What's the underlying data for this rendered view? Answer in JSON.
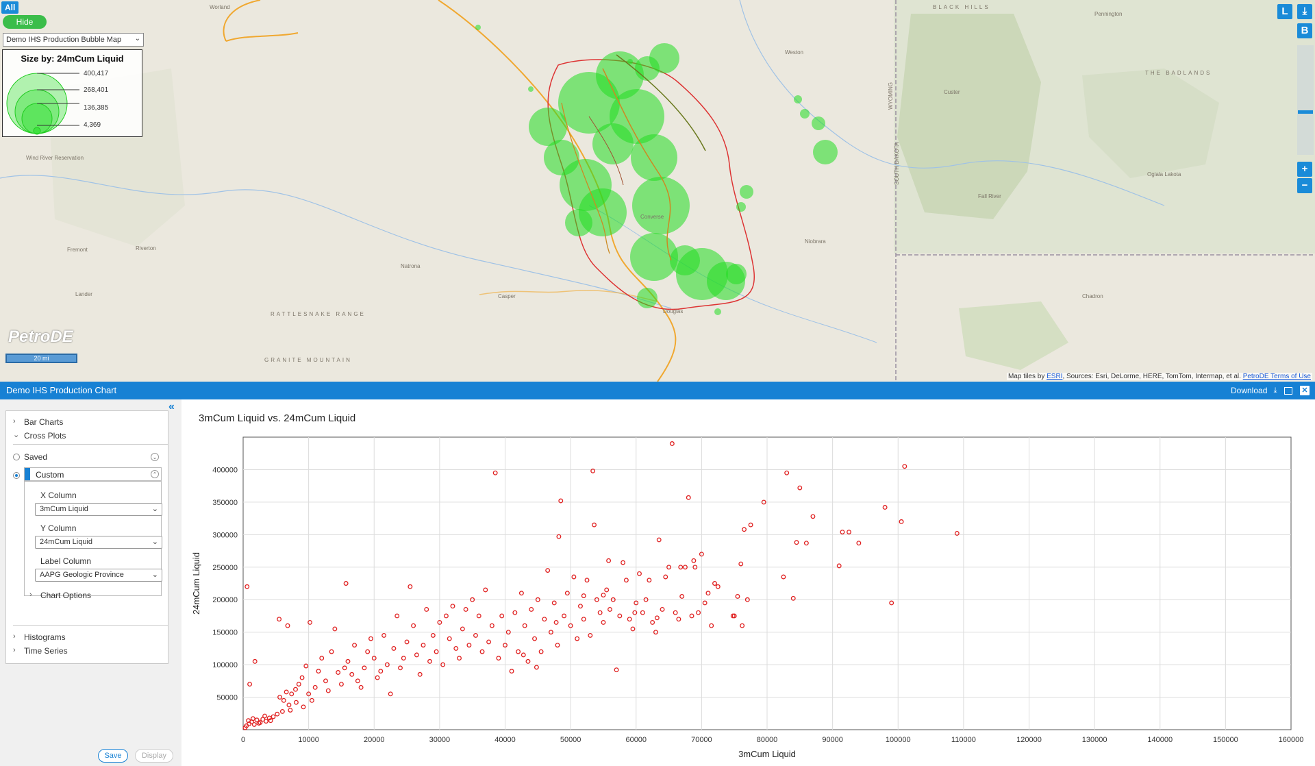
{
  "map": {
    "all_label": "All",
    "hide_label": "Hide",
    "layer_select": "Demo IHS Production Bubble Map",
    "legend": {
      "title": "Size by: 24mCum Liquid",
      "values": [
        "400,417",
        "268,401",
        "136,385",
        "4,369"
      ]
    },
    "logo": "PetroDE",
    "scale": "20 mi",
    "controls": {
      "l": "L",
      "b": "B",
      "zoom_in": "+",
      "zoom_out": "−"
    },
    "attribution_prefix": "Map tiles by",
    "attribution_esri": "ESRI",
    "attribution_rest": ", Sources: Esri, DeLorme, HERE, TomTom, Intermap, et al.",
    "attribution_terms": "PetroDE Terms of Use",
    "place_labels": [
      "Worland",
      "Wind River Reservation",
      "Riverton",
      "Lander",
      "Fremont",
      "Natrona",
      "Casper",
      "Douglas",
      "Weston",
      "Chadron",
      "Fall River",
      "Niobrara",
      "Custer",
      "Ogiala Lakota",
      "THE BADLANDS",
      "Pennington",
      "BLACK HILLS",
      "RATTLESNAKE RANGE",
      "GRANITE MOUNTAIN",
      "Converse",
      "SOUTH DAKOTA",
      "WYOMING"
    ],
    "bubble_color": "#22dd22",
    "play_boundary_color": "#dd3333"
  },
  "panel": {
    "title": "Demo IHS Production Chart",
    "download_label": "Download",
    "sidebar": {
      "bar_charts": "Bar Charts",
      "cross_plots": "Cross Plots",
      "saved": "Saved",
      "custom": "Custom",
      "x_column_label": "X Column",
      "x_column_value": "3mCum Liquid",
      "y_column_label": "Y Column",
      "y_column_value": "24mCum Liquid",
      "label_column_label": "Label Column",
      "label_column_value": "AAPG Geologic Province",
      "chart_options": "Chart Options",
      "histograms": "Histograms",
      "time_series": "Time Series"
    },
    "save_label": "Save",
    "display_label": "Display"
  },
  "chart_data": {
    "type": "scatter",
    "title": "3mCum Liquid vs. 24mCum Liquid",
    "xlabel": "3mCum Liquid",
    "ylabel": "24mCum Liquid",
    "xlim": [
      0,
      160000
    ],
    "ylim": [
      0,
      450000
    ],
    "x_ticks": [
      0,
      10000,
      20000,
      30000,
      40000,
      50000,
      60000,
      70000,
      80000,
      90000,
      100000,
      110000,
      120000,
      130000,
      140000,
      150000,
      160000
    ],
    "y_ticks": [
      50000,
      100000,
      150000,
      200000,
      250000,
      300000,
      350000,
      400000
    ],
    "grid": true,
    "marker_color": "#e02020",
    "points": [
      [
        600,
        220000
      ],
      [
        1000,
        70000
      ],
      [
        1800,
        105000
      ],
      [
        300,
        3000
      ],
      [
        500,
        6000
      ],
      [
        900,
        9000
      ],
      [
        1300,
        12000
      ],
      [
        1700,
        8000
      ],
      [
        2100,
        15000
      ],
      [
        2600,
        11000
      ],
      [
        3000,
        16000
      ],
      [
        3500,
        13000
      ],
      [
        4000,
        18000
      ],
      [
        4600,
        20000
      ],
      [
        5200,
        24000
      ],
      [
        800,
        14000
      ],
      [
        1500,
        17000
      ],
      [
        2400,
        10000
      ],
      [
        3300,
        21000
      ],
      [
        4200,
        14000
      ],
      [
        5500,
        170000
      ],
      [
        6800,
        160000
      ],
      [
        5600,
        50000
      ],
      [
        6200,
        45000
      ],
      [
        7000,
        38000
      ],
      [
        7400,
        55000
      ],
      [
        8000,
        62000
      ],
      [
        8500,
        70000
      ],
      [
        9000,
        80000
      ],
      [
        9600,
        98000
      ],
      [
        6000,
        28000
      ],
      [
        7200,
        30000
      ],
      [
        8100,
        42000
      ],
      [
        9200,
        35000
      ],
      [
        6600,
        58000
      ],
      [
        10000,
        55000
      ],
      [
        10500,
        45000
      ],
      [
        11000,
        65000
      ],
      [
        11500,
        90000
      ],
      [
        12000,
        110000
      ],
      [
        10200,
        165000
      ],
      [
        12600,
        75000
      ],
      [
        13000,
        60000
      ],
      [
        13500,
        120000
      ],
      [
        14000,
        155000
      ],
      [
        14500,
        88000
      ],
      [
        15000,
        70000
      ],
      [
        15500,
        95000
      ],
      [
        16000,
        105000
      ],
      [
        15700,
        225000
      ],
      [
        16600,
        85000
      ],
      [
        17000,
        130000
      ],
      [
        17500,
        75000
      ],
      [
        18000,
        65000
      ],
      [
        18500,
        95000
      ],
      [
        19000,
        120000
      ],
      [
        19500,
        140000
      ],
      [
        20000,
        110000
      ],
      [
        20500,
        80000
      ],
      [
        21000,
        90000
      ],
      [
        21500,
        145000
      ],
      [
        22000,
        100000
      ],
      [
        22500,
        55000
      ],
      [
        23000,
        125000
      ],
      [
        23500,
        175000
      ],
      [
        24000,
        95000
      ],
      [
        24500,
        110000
      ],
      [
        25000,
        135000
      ],
      [
        25500,
        220000
      ],
      [
        26000,
        160000
      ],
      [
        26500,
        115000
      ],
      [
        27000,
        85000
      ],
      [
        27500,
        130000
      ],
      [
        28000,
        185000
      ],
      [
        28500,
        105000
      ],
      [
        29000,
        145000
      ],
      [
        29500,
        120000
      ],
      [
        30000,
        165000
      ],
      [
        30500,
        100000
      ],
      [
        31000,
        175000
      ],
      [
        31500,
        140000
      ],
      [
        32000,
        190000
      ],
      [
        32500,
        125000
      ],
      [
        33000,
        110000
      ],
      [
        33500,
        155000
      ],
      [
        34000,
        185000
      ],
      [
        34500,
        130000
      ],
      [
        35000,
        200000
      ],
      [
        35500,
        145000
      ],
      [
        36000,
        175000
      ],
      [
        36500,
        120000
      ],
      [
        37000,
        215000
      ],
      [
        37500,
        135000
      ],
      [
        38000,
        160000
      ],
      [
        38500,
        395000
      ],
      [
        39000,
        110000
      ],
      [
        39500,
        175000
      ],
      [
        40000,
        130000
      ],
      [
        40500,
        150000
      ],
      [
        41000,
        90000
      ],
      [
        41500,
        180000
      ],
      [
        42000,
        120000
      ],
      [
        42500,
        210000
      ],
      [
        43000,
        160000
      ],
      [
        43500,
        105000
      ],
      [
        44000,
        185000
      ],
      [
        44500,
        140000
      ],
      [
        45000,
        200000
      ],
      [
        45500,
        120000
      ],
      [
        46000,
        170000
      ],
      [
        46500,
        245000
      ],
      [
        47000,
        150000
      ],
      [
        47500,
        195000
      ],
      [
        48000,
        130000
      ],
      [
        48200,
        297000
      ],
      [
        48500,
        352000
      ],
      [
        49000,
        175000
      ],
      [
        49500,
        210000
      ],
      [
        50000,
        160000
      ],
      [
        50500,
        235000
      ],
      [
        51000,
        140000
      ],
      [
        51500,
        190000
      ],
      [
        52000,
        170000
      ],
      [
        52500,
        230000
      ],
      [
        53000,
        145000
      ],
      [
        53400,
        398000
      ],
      [
        53600,
        315000
      ],
      [
        54000,
        200000
      ],
      [
        54500,
        180000
      ],
      [
        55000,
        165000
      ],
      [
        55500,
        215000
      ],
      [
        56000,
        185000
      ],
      [
        56500,
        200000
      ],
      [
        57000,
        92000
      ],
      [
        57500,
        175000
      ],
      [
        58000,
        257000
      ],
      [
        58500,
        230000
      ],
      [
        59000,
        170000
      ],
      [
        59500,
        155000
      ],
      [
        60000,
        195000
      ],
      [
        60500,
        240000
      ],
      [
        61000,
        180000
      ],
      [
        61500,
        200000
      ],
      [
        62000,
        230000
      ],
      [
        62500,
        165000
      ],
      [
        63000,
        150000
      ],
      [
        63500,
        292000
      ],
      [
        64000,
        185000
      ],
      [
        64500,
        235000
      ],
      [
        65000,
        250000
      ],
      [
        65500,
        440000
      ],
      [
        66000,
        180000
      ],
      [
        66500,
        170000
      ],
      [
        67000,
        205000
      ],
      [
        67500,
        250000
      ],
      [
        68000,
        357000
      ],
      [
        68500,
        175000
      ],
      [
        69000,
        250000
      ],
      [
        69500,
        180000
      ],
      [
        70000,
        270000
      ],
      [
        70500,
        195000
      ],
      [
        71000,
        210000
      ],
      [
        71500,
        160000
      ],
      [
        72000,
        225000
      ],
      [
        72500,
        220000
      ],
      [
        75000,
        175000
      ],
      [
        75500,
        205000
      ],
      [
        76000,
        255000
      ],
      [
        76500,
        308000
      ],
      [
        77000,
        200000
      ],
      [
        77500,
        315000
      ],
      [
        76200,
        160000
      ],
      [
        74800,
        175000
      ],
      [
        79500,
        350000
      ],
      [
        82500,
        235000
      ],
      [
        83000,
        395000
      ],
      [
        84000,
        202000
      ],
      [
        84500,
        288000
      ],
      [
        85000,
        372000
      ],
      [
        86000,
        287000
      ],
      [
        87000,
        328000
      ],
      [
        91000,
        252000
      ],
      [
        91500,
        304000
      ],
      [
        92500,
        304000
      ],
      [
        94000,
        287000
      ],
      [
        98000,
        342000
      ],
      [
        99000,
        195000
      ],
      [
        100500,
        320000
      ],
      [
        101000,
        405000
      ],
      [
        109000,
        302000
      ],
      [
        55800,
        260000
      ],
      [
        68800,
        260000
      ],
      [
        59800,
        180000
      ],
      [
        66800,
        250000
      ],
      [
        63200,
        172000
      ],
      [
        55000,
        207000
      ],
      [
        52000,
        206000
      ],
      [
        47800,
        165000
      ],
      [
        44800,
        96000
      ],
      [
        42800,
        115000
      ]
    ]
  }
}
